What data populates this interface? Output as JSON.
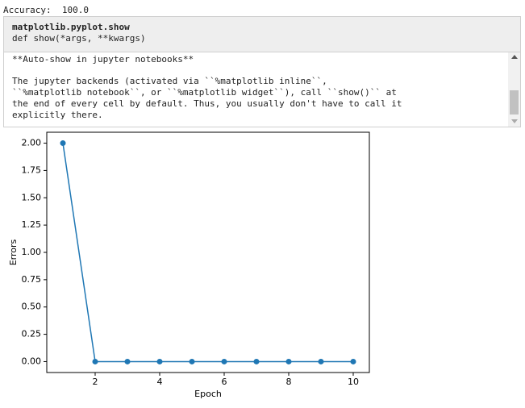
{
  "output_text": "Accuracy:  100.0",
  "tooltip": {
    "name": "matplotlib.pyplot.show",
    "signature": "def show(*args, **kwargs)",
    "heading": "**Auto-show in jupyter notebooks**",
    "lines": [
      "The jupyter backends (activated via ``%matplotlib inline``,",
      "``%matplotlib notebook``, or ``%matplotlib widget``), call ``show()`` at",
      "the end of every cell by default. Thus, you usually don't have to call it",
      "explicitly there."
    ]
  },
  "chart_data": {
    "type": "line",
    "xlabel": "Epoch",
    "ylabel": "Errors",
    "x": [
      1,
      2,
      3,
      4,
      5,
      6,
      7,
      8,
      9,
      10
    ],
    "values": [
      2,
      0,
      0,
      0,
      0,
      0,
      0,
      0,
      0,
      0
    ],
    "color": "#1f77b4",
    "xlim": [
      0.5,
      10.5
    ],
    "ylim": [
      -0.1,
      2.1
    ],
    "xticks": [
      2,
      4,
      6,
      8,
      10
    ],
    "yticks": [
      {
        "value": 0,
        "label": "0.00"
      },
      {
        "value": 0.25,
        "label": "0.25"
      },
      {
        "value": 0.5,
        "label": "0.50"
      },
      {
        "value": 0.75,
        "label": "0.75"
      },
      {
        "value": 1,
        "label": "1.00"
      },
      {
        "value": 1.25,
        "label": "1.25"
      },
      {
        "value": 1.5,
        "label": "1.50"
      },
      {
        "value": 1.75,
        "label": "1.75"
      },
      {
        "value": 2,
        "label": "2.00"
      }
    ]
  }
}
